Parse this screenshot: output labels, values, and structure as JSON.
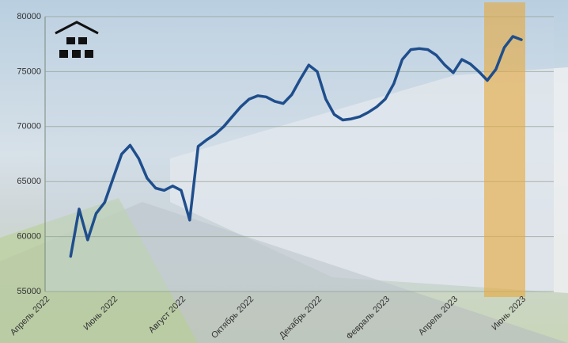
{
  "chart_data": {
    "type": "line",
    "categories": [
      "Апрель 2022",
      null,
      null,
      null,
      null,
      null,
      null,
      null,
      "Июнь 2022",
      null,
      null,
      null,
      null,
      null,
      null,
      null,
      "Август 2022",
      null,
      null,
      null,
      null,
      null,
      null,
      null,
      "Октябрь 2022",
      null,
      null,
      null,
      null,
      null,
      null,
      null,
      "Декабрь 2022",
      null,
      null,
      null,
      null,
      null,
      null,
      null,
      "Февраль 2023",
      null,
      null,
      null,
      null,
      null,
      null,
      null,
      "Апрель 2023",
      null,
      null,
      null,
      null,
      null,
      null,
      null,
      "Июнь 2023"
    ],
    "values": [
      null,
      null,
      null,
      58200,
      62500,
      59700,
      62100,
      63100,
      65300,
      67500,
      68300,
      67100,
      65300,
      64400,
      64200,
      64600,
      64200,
      61500,
      68200,
      68800,
      69300,
      70000,
      70900,
      71800,
      72500,
      72800,
      72700,
      72300,
      72100,
      72900,
      74300,
      75600,
      75000,
      72500,
      71100,
      70600,
      70700,
      70900,
      71300,
      71800,
      72500,
      73900,
      76100,
      77000,
      77100,
      77000,
      76500,
      75600,
      74900,
      76100,
      75700,
      75000,
      74200,
      75200,
      77200,
      78200,
      77900
    ],
    "color": "#1f4e8c",
    "ylim": [
      55000,
      80000
    ],
    "yticks": [
      55000,
      60000,
      65000,
      70000,
      75000,
      80000
    ],
    "grid": true
  }
}
